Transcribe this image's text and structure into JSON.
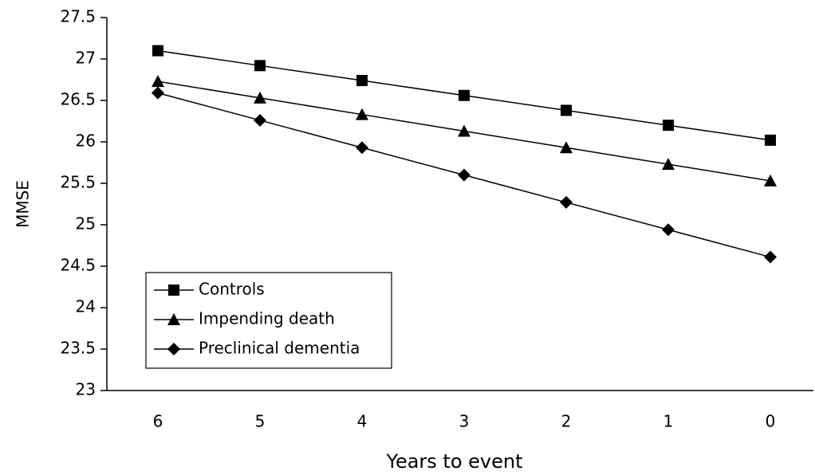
{
  "chart_data": {
    "type": "line",
    "xlabel": "Years to event",
    "ylabel": "MMSE",
    "categories": [
      "6",
      "5",
      "4",
      "3",
      "2",
      "1",
      "0"
    ],
    "series": [
      {
        "name": "Controls",
        "color": "#000000",
        "marker": "square",
        "values": [
          27.1,
          26.92,
          26.74,
          26.56,
          26.38,
          26.2,
          26.02
        ]
      },
      {
        "name": "Impending death",
        "color": "#000000",
        "marker": "triangle",
        "values": [
          26.73,
          26.53,
          26.33,
          26.13,
          25.93,
          25.73,
          25.53
        ]
      },
      {
        "name": "Preclinical dementia",
        "color": "#000000",
        "marker": "diamond",
        "values": [
          26.59,
          26.26,
          25.93,
          25.6,
          25.27,
          24.94,
          24.61
        ]
      }
    ],
    "ylim": [
      23,
      27.5
    ],
    "yticks": [
      23,
      23.5,
      24,
      24.5,
      25,
      25.5,
      26,
      26.5,
      27,
      27.5
    ],
    "grid": false,
    "legend": "lower left"
  }
}
